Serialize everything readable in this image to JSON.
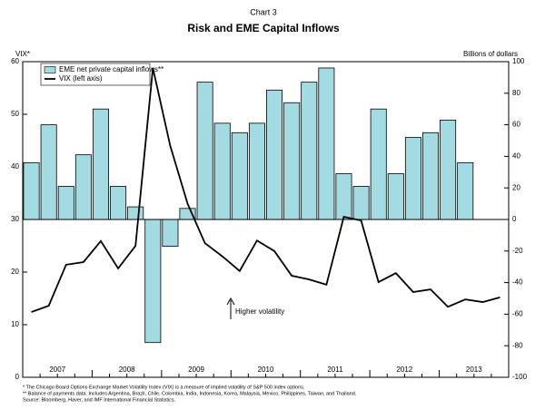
{
  "chart_data": {
    "type": "bar-line",
    "supertitle": "Chart 3",
    "title": "Risk and EME Capital Inflows",
    "y_label": "VIX*",
    "y2_label": "Billions of dollars",
    "years": [
      "2007",
      "2008",
      "2009",
      "2010",
      "2011",
      "2012",
      "2013"
    ],
    "quarters_per_year": 4,
    "series": [
      {
        "name": "EME net private capital inflows**",
        "kind": "bar",
        "axis": "y2",
        "color": "#a4dbe3",
        "values": [
          36,
          60,
          21,
          41,
          70,
          21,
          8,
          -78,
          -17,
          7,
          87,
          61,
          55,
          61,
          82,
          74,
          87,
          96,
          29,
          21,
          70,
          29,
          52,
          55,
          63,
          36
        ]
      },
      {
        "name": "VIX (left axis)",
        "kind": "line",
        "axis": "y",
        "color": "#000000",
        "values": [
          12.4,
          13.6,
          21.4,
          21.9,
          25.9,
          20.7,
          25,
          58.8,
          44,
          33,
          25.5,
          23,
          20.2,
          26,
          24,
          19.3,
          18.6,
          17.6,
          30.5,
          29.8,
          18.1,
          19.8,
          16.2,
          16.7,
          13.4,
          14.8,
          14.3,
          15.2
        ]
      }
    ],
    "ylim": [
      0,
      60
    ],
    "yticks": [
      0,
      10,
      20,
      30,
      40,
      50,
      60
    ],
    "y2lim": [
      -100,
      100
    ],
    "y2ticks": [
      -100,
      -80,
      -60,
      -40,
      -20,
      0,
      20,
      40,
      60,
      80,
      100
    ],
    "annotation": "Higher volatility",
    "footnotes": [
      "* The Chicago Board Options Exchange Market Volatility Index (VIX) is a measure of implied volatility of S&P 500 index options.",
      "** Balance of payments data. Includes Argentina, Brazil, Chile, Colombia, India, Indonesia, Korea, Malaysia, Mexico, Philippines, Taiwan, and Thailand.",
      "Source: Bloomberg, Haver, and IMF International Financial Statistics."
    ]
  }
}
